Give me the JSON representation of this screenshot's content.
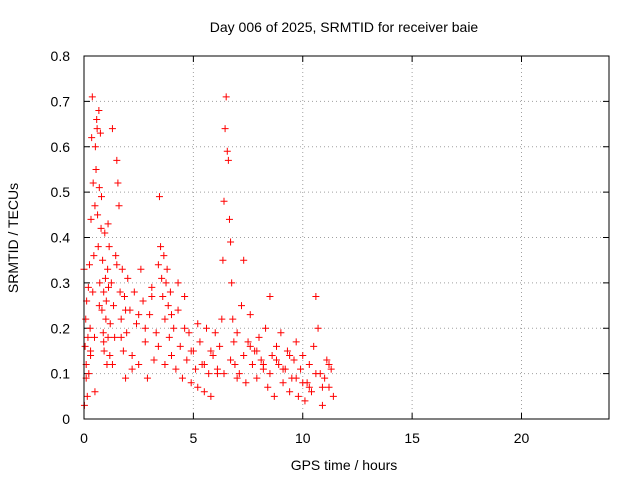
{
  "chart_data": {
    "type": "scatter",
    "title": "Day 006 of 2025, SRMTID for receiver baie",
    "xlabel": "GPS time / hours",
    "ylabel": "SRMTID / TECUs",
    "xlim": [
      0,
      24
    ],
    "ylim": [
      0,
      0.8
    ],
    "xticks": [
      0,
      5,
      10,
      15,
      20
    ],
    "xtick_labels": [
      "0",
      "5",
      "10",
      "15",
      "20"
    ],
    "yticks": [
      0,
      0.1,
      0.2,
      0.3,
      0.4,
      0.5,
      0.6,
      0.7,
      0.8
    ],
    "ytick_labels": [
      "0",
      "0.1",
      "0.2",
      "0.3",
      "0.4",
      "0.5",
      "0.6",
      "0.7",
      "0.8"
    ],
    "grid": true,
    "marker": "+",
    "marker_color": "#ff0000",
    "series": [
      {
        "name": "SRMTID",
        "x": [
          0.0,
          0.02,
          0.05,
          0.08,
          0.1,
          0.12,
          0.15,
          0.18,
          0.2,
          0.22,
          0.25,
          0.28,
          0.3,
          0.32,
          0.35,
          0.38,
          0.4,
          0.42,
          0.45,
          0.48,
          0.5,
          0.52,
          0.55,
          0.58,
          0.6,
          0.62,
          0.65,
          0.68,
          0.7,
          0.72,
          0.75,
          0.78,
          0.8,
          0.82,
          0.85,
          0.88,
          0.9,
          0.92,
          0.95,
          0.98,
          1.0,
          1.02,
          1.05,
          1.08,
          1.1,
          1.12,
          1.15,
          1.18,
          1.2,
          1.25,
          1.3,
          1.35,
          1.4,
          1.45,
          1.5,
          1.55,
          1.6,
          1.65,
          1.7,
          1.75,
          1.8,
          1.85,
          1.9,
          1.95,
          2.0,
          2.1,
          2.2,
          2.3,
          2.4,
          2.5,
          2.6,
          2.7,
          2.8,
          2.9,
          3.0,
          3.1,
          3.2,
          3.3,
          3.4,
          3.45,
          3.5,
          3.55,
          3.6,
          3.65,
          3.7,
          3.75,
          3.8,
          3.85,
          3.9,
          3.95,
          4.0,
          4.1,
          4.2,
          4.3,
          4.4,
          4.5,
          4.6,
          4.7,
          4.8,
          4.9,
          5.0,
          5.1,
          5.2,
          5.3,
          5.4,
          5.5,
          5.6,
          5.7,
          5.8,
          5.9,
          6.0,
          6.1,
          6.2,
          6.3,
          6.35,
          6.4,
          6.45,
          6.5,
          6.55,
          6.6,
          6.65,
          6.7,
          6.75,
          6.8,
          6.85,
          6.9,
          7.0,
          7.1,
          7.2,
          7.3,
          7.4,
          7.5,
          7.6,
          7.7,
          7.8,
          7.9,
          8.0,
          8.1,
          8.2,
          8.3,
          8.4,
          8.5,
          8.6,
          8.7,
          8.8,
          8.9,
          9.0,
          9.1,
          9.2,
          9.3,
          9.4,
          9.5,
          9.6,
          9.7,
          9.8,
          9.9,
          10.0,
          10.1,
          10.2,
          10.3,
          10.4,
          10.5,
          10.6,
          10.7,
          10.8,
          10.9,
          11.0,
          11.1,
          11.2,
          11.3,
          11.4,
          0.1,
          0.3,
          0.5,
          0.7,
          0.9,
          1.1,
          1.3,
          1.5,
          1.7,
          1.9,
          2.2,
          2.5,
          2.8,
          3.1,
          3.4,
          3.7,
          4.0,
          4.3,
          4.6,
          4.9,
          5.2,
          5.5,
          5.8,
          6.1,
          6.4,
          6.7,
          7.0,
          7.3,
          7.6,
          7.9,
          8.2,
          8.5,
          8.8,
          9.1,
          9.4,
          9.7,
          10.0,
          10.3,
          10.6,
          10.9,
          11.2
        ],
        "y": [
          0.33,
          0.03,
          0.16,
          0.22,
          0.12,
          0.26,
          0.05,
          0.18,
          0.29,
          0.1,
          0.34,
          0.2,
          0.14,
          0.44,
          0.62,
          0.71,
          0.28,
          0.52,
          0.36,
          0.18,
          0.47,
          0.6,
          0.55,
          0.66,
          0.64,
          0.45,
          0.38,
          0.68,
          0.51,
          0.3,
          0.63,
          0.42,
          0.49,
          0.24,
          0.35,
          0.19,
          0.28,
          0.15,
          0.41,
          0.31,
          0.22,
          0.26,
          0.12,
          0.33,
          0.18,
          0.29,
          0.38,
          0.14,
          0.21,
          0.3,
          0.12,
          0.25,
          0.18,
          0.36,
          0.57,
          0.52,
          0.47,
          0.28,
          0.22,
          0.33,
          0.15,
          0.27,
          0.09,
          0.19,
          0.31,
          0.24,
          0.14,
          0.28,
          0.21,
          0.12,
          0.33,
          0.26,
          0.17,
          0.09,
          0.23,
          0.29,
          0.13,
          0.19,
          0.34,
          0.49,
          0.38,
          0.31,
          0.27,
          0.36,
          0.22,
          0.3,
          0.33,
          0.25,
          0.18,
          0.28,
          0.14,
          0.2,
          0.11,
          0.24,
          0.16,
          0.09,
          0.27,
          0.13,
          0.19,
          0.08,
          0.15,
          0.11,
          0.07,
          0.17,
          0.12,
          0.06,
          0.2,
          0.1,
          0.05,
          0.14,
          0.19,
          0.11,
          0.16,
          0.22,
          0.35,
          0.48,
          0.64,
          0.71,
          0.59,
          0.57,
          0.44,
          0.39,
          0.3,
          0.22,
          0.17,
          0.12,
          0.19,
          0.1,
          0.25,
          0.14,
          0.08,
          0.17,
          0.23,
          0.12,
          0.15,
          0.09,
          0.18,
          0.13,
          0.11,
          0.2,
          0.07,
          0.27,
          0.14,
          0.05,
          0.16,
          0.12,
          0.19,
          0.08,
          0.11,
          0.15,
          0.06,
          0.09,
          0.13,
          0.17,
          0.05,
          0.11,
          0.14,
          0.04,
          0.08,
          0.12,
          0.06,
          0.16,
          0.27,
          0.2,
          0.1,
          0.03,
          0.09,
          0.13,
          0.07,
          0.11,
          0.05,
          0.09,
          0.15,
          0.06,
          0.25,
          0.17,
          0.43,
          0.64,
          0.34,
          0.18,
          0.24,
          0.11,
          0.23,
          0.2,
          0.27,
          0.16,
          0.12,
          0.23,
          0.3,
          0.2,
          0.15,
          0.21,
          0.12,
          0.15,
          0.1,
          0.1,
          0.13,
          0.09,
          0.35,
          0.16,
          0.15,
          0.12,
          0.1,
          0.13,
          0.11,
          0.14,
          0.09,
          0.08,
          0.07,
          0.1,
          0.07,
          0.12
        ]
      }
    ]
  }
}
